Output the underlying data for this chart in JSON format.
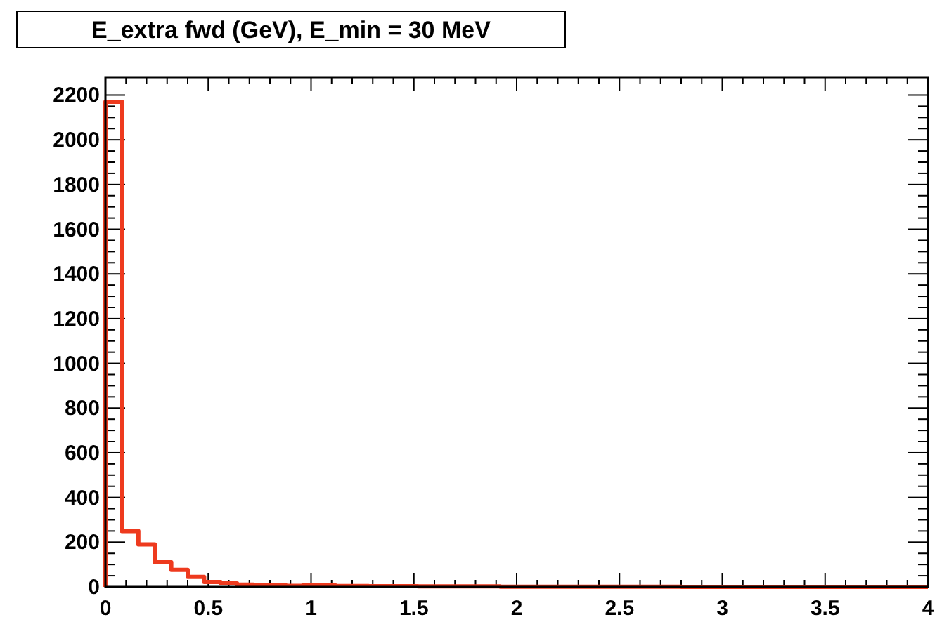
{
  "chart_data": {
    "type": "histogram",
    "title": "E_extra fwd (GeV), E_min = 30 MeV",
    "color": "#ee3a1e",
    "bins": [
      0,
      0.08,
      0.16,
      0.24,
      0.32,
      0.4,
      0.48,
      0.56,
      0.64,
      0.72,
      0.8,
      0.88,
      0.96,
      1.04,
      1.12,
      1.2,
      1.28,
      1.36,
      1.44,
      1.52,
      1.6,
      1.68,
      1.76,
      1.84,
      1.92,
      2,
      2.08,
      2.16,
      2.24,
      2.32,
      2.4,
      2.48,
      2.56,
      2.64,
      2.72,
      2.8,
      2.88,
      2.96,
      3.04,
      3.12,
      3.2,
      3.28,
      3.36,
      3.44,
      3.52,
      3.6,
      3.68,
      3.76,
      3.84,
      3.92,
      4
    ],
    "values": [
      2170,
      250,
      190,
      110,
      76,
      45,
      22,
      16,
      10,
      8,
      6,
      5,
      7,
      6,
      4,
      4,
      3,
      3,
      3,
      2,
      2,
      2,
      2,
      2,
      1,
      1,
      1,
      1,
      1,
      1,
      1,
      1,
      1,
      1,
      1,
      0,
      0,
      0,
      0,
      0,
      0,
      0,
      0,
      0,
      0,
      0,
      0,
      0,
      0,
      0
    ],
    "xlim": [
      0,
      4
    ],
    "xticks": [
      0,
      0.5,
      1,
      1.5,
      2,
      2.5,
      3,
      3.5,
      4
    ],
    "ylim": [
      0,
      2280
    ],
    "yticks": [
      0,
      200,
      400,
      600,
      800,
      1000,
      1200,
      1400,
      1600,
      1800,
      2000,
      2200
    ]
  }
}
